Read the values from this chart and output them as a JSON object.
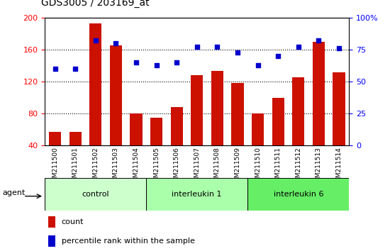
{
  "title": "GDS3005 / 203169_at",
  "samples": [
    "GSM211500",
    "GSM211501",
    "GSM211502",
    "GSM211503",
    "GSM211504",
    "GSM211505",
    "GSM211506",
    "GSM211507",
    "GSM211508",
    "GSM211509",
    "GSM211510",
    "GSM211511",
    "GSM211512",
    "GSM211513",
    "GSM211514"
  ],
  "counts": [
    57,
    57,
    193,
    165,
    80,
    75,
    88,
    128,
    133,
    118,
    80,
    100,
    125,
    170,
    132
  ],
  "percentile": [
    60,
    60,
    82,
    80,
    65,
    63,
    65,
    77,
    77,
    73,
    63,
    70,
    77,
    82,
    76
  ],
  "groups": [
    {
      "label": "control",
      "start": 0,
      "end": 5,
      "color": "#ccffcc"
    },
    {
      "label": "interleukin 1",
      "start": 5,
      "end": 10,
      "color": "#aaffaa"
    },
    {
      "label": "interleukin 6",
      "start": 10,
      "end": 15,
      "color": "#66ee66"
    }
  ],
  "bar_color": "#cc1100",
  "dot_color": "#0000cc",
  "ylim_left": [
    40,
    200
  ],
  "ylim_right": [
    0,
    100
  ],
  "yticks_left": [
    40,
    80,
    120,
    160,
    200
  ],
  "yticks_right": [
    0,
    25,
    50,
    75,
    100
  ],
  "background_color": "#ffffff",
  "agent_label": "agent",
  "legend_count": "count",
  "legend_pct": "percentile rank within the sample",
  "plot_bg": "#ffffff",
  "xtick_bg": "#d0d0d0"
}
